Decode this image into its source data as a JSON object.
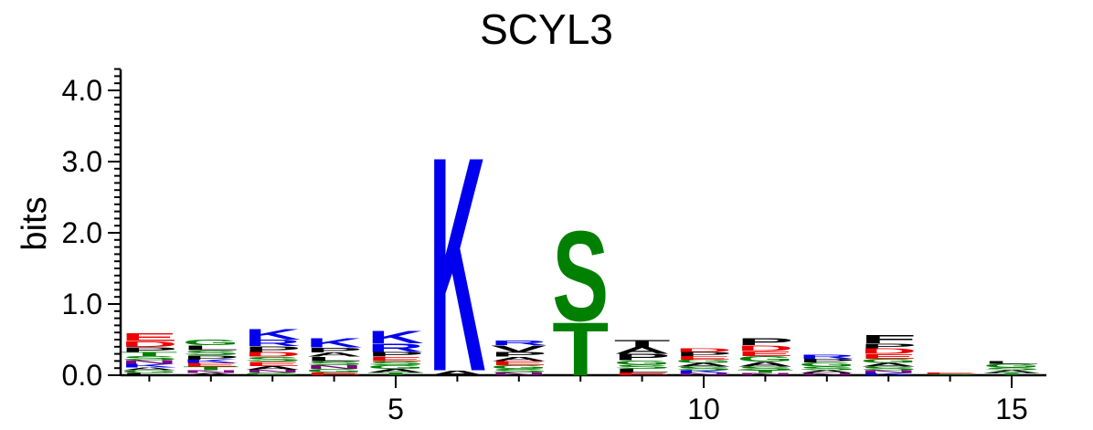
{
  "chart_data": {
    "type": "sequence-logo",
    "title": "SCYL3",
    "ylabel": "bits",
    "xlabel": "",
    "ylim": [
      0,
      4.3
    ],
    "xlim": [
      0.5,
      15.5
    ],
    "y_ticks": [
      "0.0",
      "1.0",
      "2.0",
      "3.0",
      "4.0"
    ],
    "x_ticks": [
      "5",
      "10",
      "15"
    ],
    "x_tick_values": [
      5,
      10,
      15
    ],
    "y_tick_values": [
      0,
      1,
      2,
      3,
      4
    ],
    "colors": {
      "basic": "#0000ee",
      "acidic": "#ee0000",
      "polar": "#008000",
      "hydrophobic": "#000000",
      "other": "#800080"
    },
    "positions": [
      {
        "pos": 1,
        "letters": [
          {
            "aa": "L",
            "bits": 0.03,
            "color": "#000000"
          },
          {
            "aa": "G",
            "bits": 0.04,
            "color": "#008000"
          },
          {
            "aa": "A",
            "bits": 0.04,
            "color": "#000000"
          },
          {
            "aa": "K",
            "bits": 0.05,
            "color": "#0000ee"
          },
          {
            "aa": "N",
            "bits": 0.05,
            "color": "#800080"
          },
          {
            "aa": "S",
            "bits": 0.06,
            "color": "#008000"
          },
          {
            "aa": "T",
            "bits": 0.06,
            "color": "#008000"
          },
          {
            "aa": "P",
            "bits": 0.07,
            "color": "#000000"
          },
          {
            "aa": "D",
            "bits": 0.08,
            "color": "#ee0000"
          },
          {
            "aa": "E",
            "bits": 0.11,
            "color": "#ee0000"
          }
        ]
      },
      {
        "pos": 2,
        "letters": [
          {
            "aa": "A",
            "bits": 0.03,
            "color": "#000000"
          },
          {
            "aa": "N",
            "bits": 0.04,
            "color": "#800080"
          },
          {
            "aa": "T",
            "bits": 0.05,
            "color": "#008000"
          },
          {
            "aa": "E",
            "bits": 0.05,
            "color": "#ee0000"
          },
          {
            "aa": "K",
            "bits": 0.05,
            "color": "#0000ee"
          },
          {
            "aa": "P",
            "bits": 0.06,
            "color": "#000000"
          },
          {
            "aa": "S",
            "bits": 0.07,
            "color": "#008000"
          },
          {
            "aa": "L",
            "bits": 0.07,
            "color": "#000000"
          },
          {
            "aa": "G",
            "bits": 0.08,
            "color": "#008000"
          }
        ]
      },
      {
        "pos": 3,
        "letters": [
          {
            "aa": "G",
            "bits": 0.04,
            "color": "#008000"
          },
          {
            "aa": "N",
            "bits": 0.04,
            "color": "#800080"
          },
          {
            "aa": "A",
            "bits": 0.05,
            "color": "#000000"
          },
          {
            "aa": "E",
            "bits": 0.06,
            "color": "#ee0000"
          },
          {
            "aa": "S",
            "bits": 0.07,
            "color": "#008000"
          },
          {
            "aa": "D",
            "bits": 0.07,
            "color": "#ee0000"
          },
          {
            "aa": "P",
            "bits": 0.08,
            "color": "#000000"
          },
          {
            "aa": "R",
            "bits": 0.09,
            "color": "#0000ee"
          },
          {
            "aa": "K",
            "bits": 0.15,
            "color": "#0000ee"
          }
        ]
      },
      {
        "pos": 4,
        "letters": [
          {
            "aa": "E",
            "bits": 0.04,
            "color": "#ee0000"
          },
          {
            "aa": "G",
            "bits": 0.05,
            "color": "#008000"
          },
          {
            "aa": "N",
            "bits": 0.05,
            "color": "#800080"
          },
          {
            "aa": "S",
            "bits": 0.06,
            "color": "#008000"
          },
          {
            "aa": "L",
            "bits": 0.06,
            "color": "#000000"
          },
          {
            "aa": "A",
            "bits": 0.06,
            "color": "#000000"
          },
          {
            "aa": "P",
            "bits": 0.07,
            "color": "#000000"
          },
          {
            "aa": "K",
            "bits": 0.14,
            "color": "#0000ee"
          }
        ]
      },
      {
        "pos": 5,
        "letters": [
          {
            "aa": "T",
            "bits": 0.04,
            "color": "#008000"
          },
          {
            "aa": "A",
            "bits": 0.05,
            "color": "#000000"
          },
          {
            "aa": "G",
            "bits": 0.05,
            "color": "#008000"
          },
          {
            "aa": "S",
            "bits": 0.06,
            "color": "#008000"
          },
          {
            "aa": "E",
            "bits": 0.06,
            "color": "#ee0000"
          },
          {
            "aa": "P",
            "bits": 0.07,
            "color": "#000000"
          },
          {
            "aa": "R",
            "bits": 0.12,
            "color": "#0000ee"
          },
          {
            "aa": "K",
            "bits": 0.18,
            "color": "#0000ee"
          }
        ]
      },
      {
        "pos": 6,
        "letters": [
          {
            "aa": "A",
            "bits": 0.07,
            "color": "#000000"
          },
          {
            "aa": "K",
            "bits": 3.1,
            "color": "#0000ee"
          }
        ]
      },
      {
        "pos": 7,
        "letters": [
          {
            "aa": "N",
            "bits": 0.04,
            "color": "#800080"
          },
          {
            "aa": "S",
            "bits": 0.05,
            "color": "#008000"
          },
          {
            "aa": "G",
            "bits": 0.05,
            "color": "#008000"
          },
          {
            "aa": "E",
            "bits": 0.06,
            "color": "#ee0000"
          },
          {
            "aa": "A",
            "bits": 0.06,
            "color": "#000000"
          },
          {
            "aa": "P",
            "bits": 0.07,
            "color": "#000000"
          },
          {
            "aa": "V",
            "bits": 0.09,
            "color": "#000000"
          },
          {
            "aa": "R",
            "bits": 0.07,
            "color": "#0000ee"
          }
        ]
      },
      {
        "pos": 8,
        "letters": [
          {
            "aa": "T",
            "bits": 0.77,
            "color": "#008000"
          },
          {
            "aa": "S",
            "bits": 1.3,
            "color": "#008000"
          }
        ]
      },
      {
        "pos": 9,
        "letters": [
          {
            "aa": "E",
            "bits": 0.04,
            "color": "#ee0000"
          },
          {
            "aa": "L",
            "bits": 0.05,
            "color": "#000000"
          },
          {
            "aa": "S",
            "bits": 0.06,
            "color": "#008000"
          },
          {
            "aa": "G",
            "bits": 0.06,
            "color": "#008000"
          },
          {
            "aa": "P",
            "bits": 0.09,
            "color": "#000000"
          },
          {
            "aa": "A",
            "bits": 0.1,
            "color": "#000000"
          },
          {
            "aa": "T",
            "bits": 0.1,
            "color": "#000000"
          }
        ]
      },
      {
        "pos": 10,
        "letters": [
          {
            "aa": "N",
            "bits": 0.03,
            "color": "#800080"
          },
          {
            "aa": "K",
            "bits": 0.04,
            "color": "#0000ee"
          },
          {
            "aa": "S",
            "bits": 0.05,
            "color": "#008000"
          },
          {
            "aa": "A",
            "bits": 0.05,
            "color": "#000000"
          },
          {
            "aa": "G",
            "bits": 0.05,
            "color": "#008000"
          },
          {
            "aa": "E",
            "bits": 0.05,
            "color": "#ee0000"
          },
          {
            "aa": "P",
            "bits": 0.06,
            "color": "#000000"
          },
          {
            "aa": "D",
            "bits": 0.05,
            "color": "#ee0000"
          }
        ]
      },
      {
        "pos": 11,
        "letters": [
          {
            "aa": "N",
            "bits": 0.03,
            "color": "#800080"
          },
          {
            "aa": "T",
            "bits": 0.04,
            "color": "#008000"
          },
          {
            "aa": "S",
            "bits": 0.05,
            "color": "#008000"
          },
          {
            "aa": "A",
            "bits": 0.07,
            "color": "#000000"
          },
          {
            "aa": "G",
            "bits": 0.08,
            "color": "#008000"
          },
          {
            "aa": "E",
            "bits": 0.07,
            "color": "#ee0000"
          },
          {
            "aa": "D",
            "bits": 0.08,
            "color": "#ee0000"
          },
          {
            "aa": "P",
            "bits": 0.1,
            "color": "#000000"
          }
        ]
      },
      {
        "pos": 12,
        "letters": [
          {
            "aa": "N",
            "bits": 0.03,
            "color": "#800080"
          },
          {
            "aa": "A",
            "bits": 0.04,
            "color": "#000000"
          },
          {
            "aa": "S",
            "bits": 0.05,
            "color": "#008000"
          },
          {
            "aa": "G",
            "bits": 0.06,
            "color": "#008000"
          },
          {
            "aa": "P",
            "bits": 0.05,
            "color": "#000000"
          },
          {
            "aa": "R",
            "bits": 0.06,
            "color": "#0000ee"
          }
        ]
      },
      {
        "pos": 13,
        "letters": [
          {
            "aa": "K",
            "bits": 0.03,
            "color": "#0000ee"
          },
          {
            "aa": "N",
            "bits": 0.04,
            "color": "#800080"
          },
          {
            "aa": "S",
            "bits": 0.05,
            "color": "#008000"
          },
          {
            "aa": "A",
            "bits": 0.05,
            "color": "#000000"
          },
          {
            "aa": "G",
            "bits": 0.06,
            "color": "#008000"
          },
          {
            "aa": "E",
            "bits": 0.07,
            "color": "#ee0000"
          },
          {
            "aa": "D",
            "bits": 0.08,
            "color": "#ee0000"
          },
          {
            "aa": "P",
            "bits": 0.07,
            "color": "#000000"
          },
          {
            "aa": "F",
            "bits": 0.12,
            "color": "#000000"
          }
        ]
      },
      {
        "pos": 14,
        "letters": [
          {
            "aa": "S",
            "bits": 0.02,
            "color": "#008000"
          },
          {
            "aa": "E",
            "bits": 0.02,
            "color": "#ee0000"
          }
        ]
      },
      {
        "pos": 15,
        "letters": [
          {
            "aa": "T",
            "bits": 0.03,
            "color": "#008000"
          },
          {
            "aa": "A",
            "bits": 0.04,
            "color": "#000000"
          },
          {
            "aa": "S",
            "bits": 0.04,
            "color": "#008000"
          },
          {
            "aa": "G",
            "bits": 0.05,
            "color": "#008000"
          },
          {
            "aa": "L",
            "bits": 0.04,
            "color": "#000000"
          }
        ]
      }
    ]
  }
}
